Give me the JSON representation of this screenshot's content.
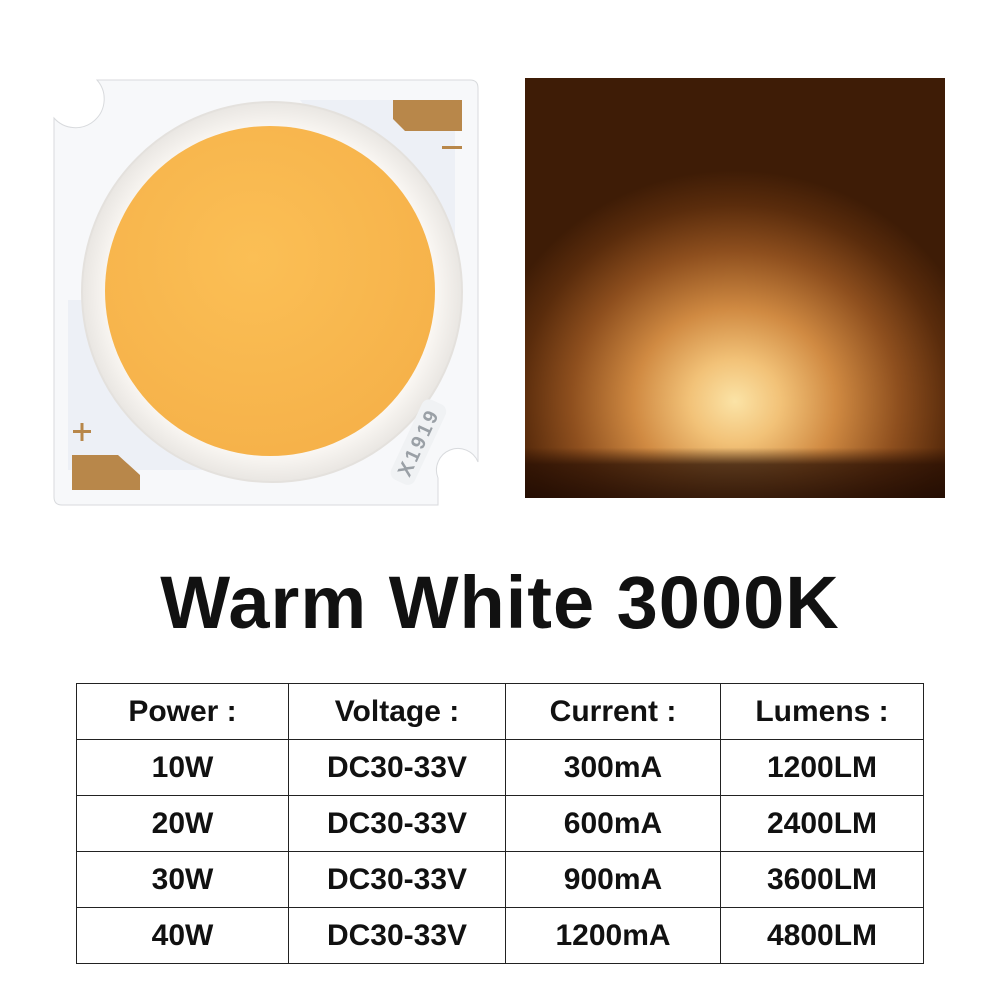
{
  "chip": {
    "marking": "X1919",
    "plus_label": "+",
    "minus_label": "−",
    "emitter_color": "#f8b84e",
    "pad_color": "#b8874a"
  },
  "title": "Warm White 3000K",
  "table": {
    "headers": [
      "Power :",
      "Voltage :",
      "Current :",
      "Lumens :"
    ],
    "rows": [
      [
        "10W",
        "DC30-33V",
        "300mA",
        "1200LM"
      ],
      [
        "20W",
        "DC30-33V",
        "600mA",
        "2400LM"
      ],
      [
        "30W",
        "DC30-33V",
        "900mA",
        "3600LM"
      ],
      [
        "40W",
        "DC30-33V",
        "1200mA",
        "4800LM"
      ]
    ]
  }
}
